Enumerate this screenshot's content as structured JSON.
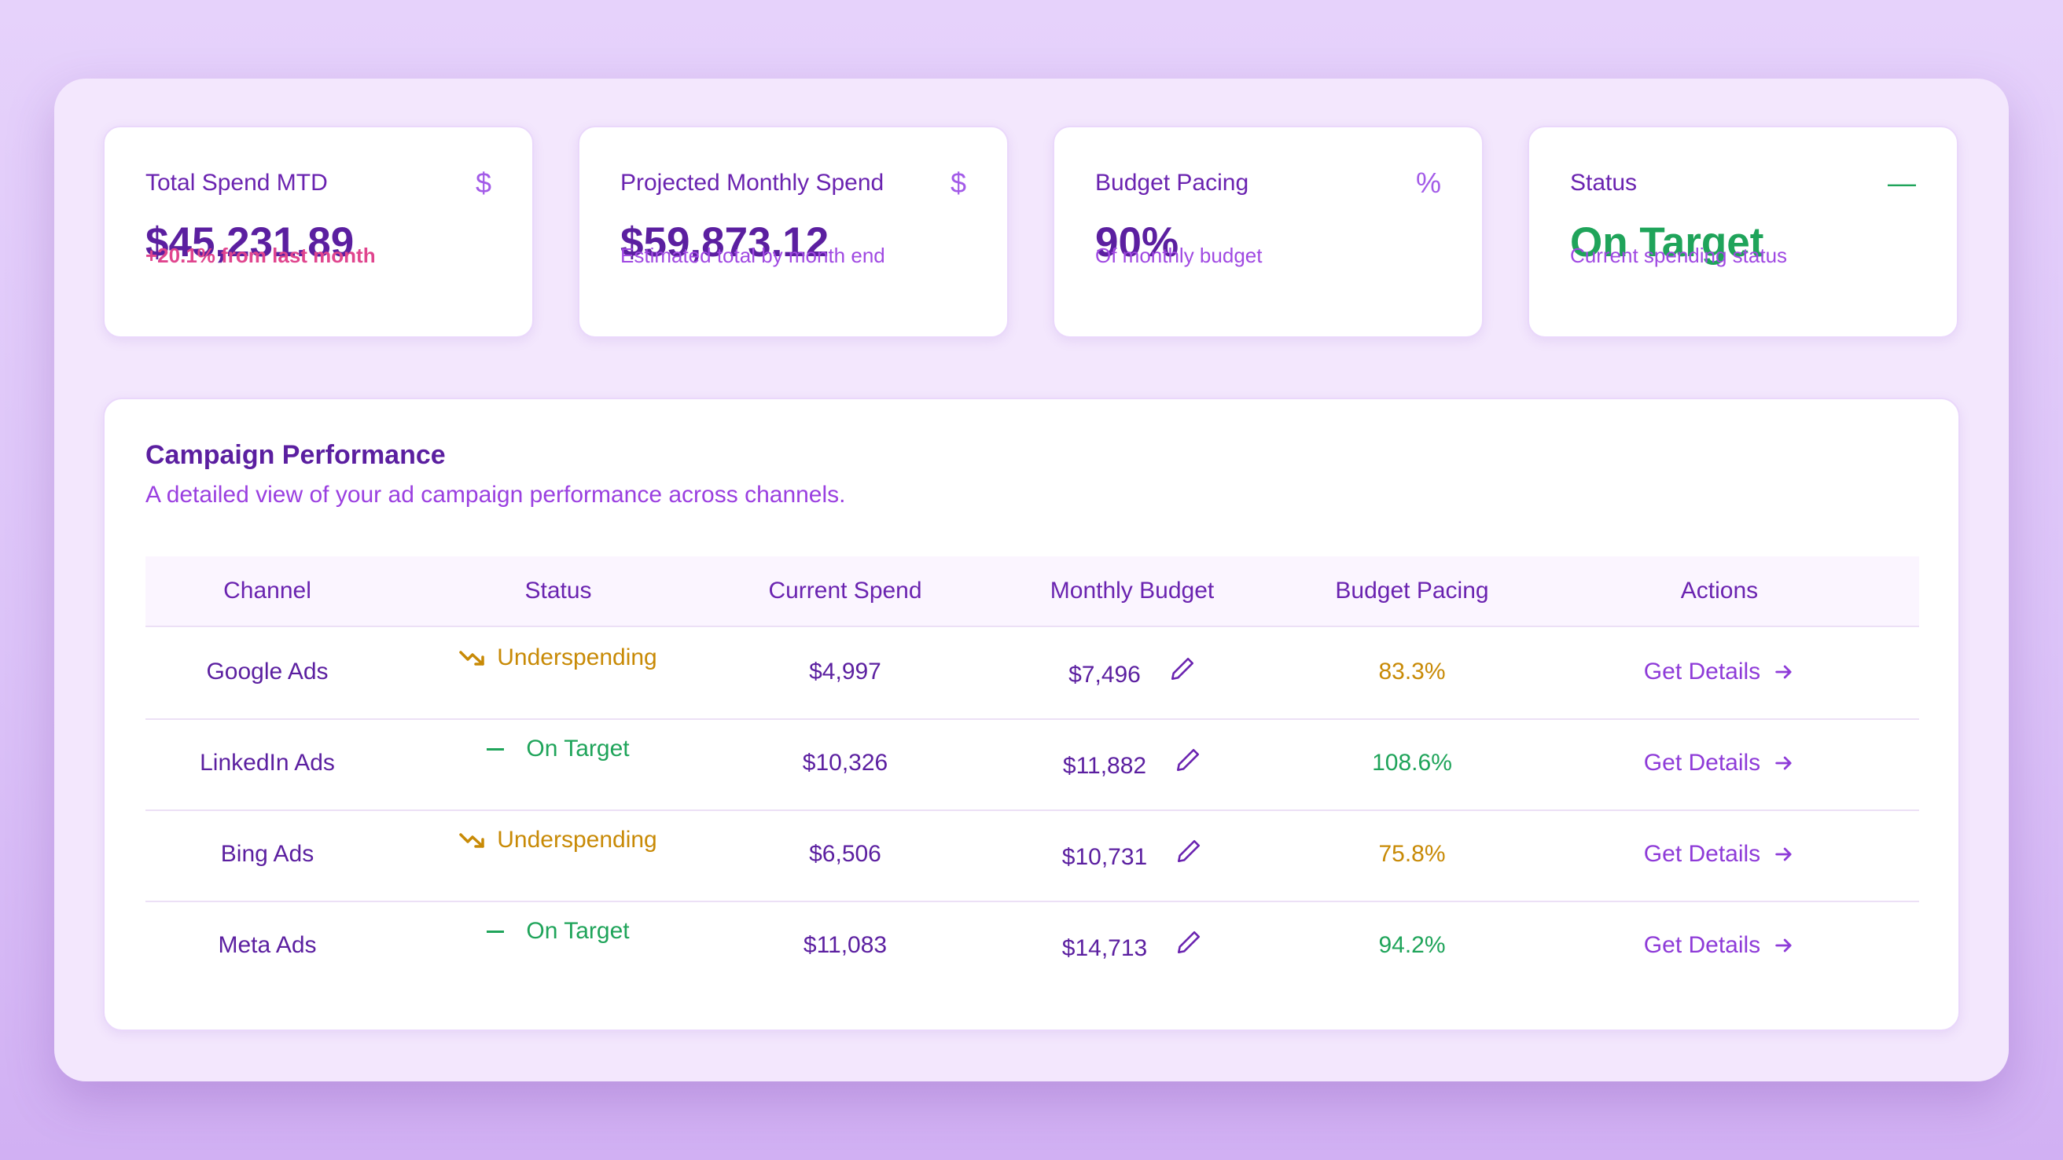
{
  "cards": [
    {
      "title": "Total Spend MTD",
      "icon": "dollar-icon",
      "icon_glyph": "$",
      "value": "$45,231.89",
      "sub": "+20.1% from last month"
    },
    {
      "title": "Projected Monthly Spend",
      "icon": "dollar-icon",
      "icon_glyph": "$",
      "value": "$59,873.12",
      "sub": "Estimated total by month end"
    },
    {
      "title": "Budget Pacing",
      "icon": "percent-icon",
      "icon_glyph": "%",
      "value": "90%",
      "sub": "Of monthly budget"
    },
    {
      "title": "Status",
      "icon": "minus-icon",
      "icon_glyph": "—",
      "value": "On Target",
      "sub": "Current spending status"
    }
  ],
  "colors": {
    "accent_purple": "#5b1fa0",
    "label_purple": "#a049e2",
    "positive_pink": "#e0458e",
    "on_target_green": "#1fa45a",
    "underspending_amber": "#c88a06"
  },
  "table": {
    "title": "Campaign Performance",
    "subtitle": "A detailed view of your ad campaign performance across channels.",
    "headers": [
      "Channel",
      "Status",
      "Current Spend",
      "Monthly Budget",
      "Budget Pacing",
      "Actions"
    ],
    "rows": [
      {
        "channel": "Google Ads",
        "status": "Underspending",
        "status_icon": "trending-down-icon",
        "spend": "$4,997",
        "budget": "$7,496",
        "pacing": "83.3%",
        "action": "Get Details"
      },
      {
        "channel": "LinkedIn Ads",
        "status": "On Target",
        "status_icon": "minus-icon",
        "spend": "$10,326",
        "budget": "$11,882",
        "pacing": "108.6%",
        "action": "Get Details"
      },
      {
        "channel": "Bing Ads",
        "status": "Underspending",
        "status_icon": "trending-down-icon",
        "spend": "$6,506",
        "budget": "$10,731",
        "pacing": "75.8%",
        "action": "Get Details"
      },
      {
        "channel": "Meta Ads",
        "status": "On Target",
        "status_icon": "minus-icon",
        "spend": "$11,083",
        "budget": "$14,713",
        "pacing": "94.2%",
        "action": "Get Details"
      }
    ]
  }
}
